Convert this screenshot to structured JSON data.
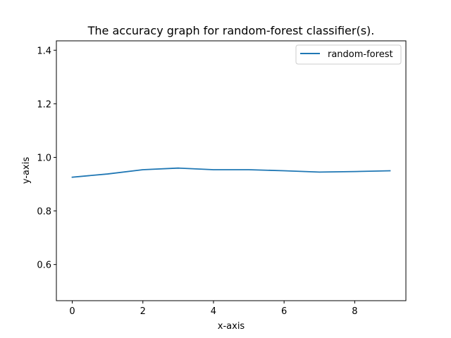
{
  "chart_data": {
    "type": "line",
    "title": "The accuracy graph for random-forest classifier(s).",
    "xlabel": "x-axis",
    "ylabel": "y-axis",
    "xlim": [
      -0.45,
      9.45
    ],
    "ylim": [
      0.465,
      1.435
    ],
    "xticks": [
      0,
      2,
      4,
      6,
      8
    ],
    "xtick_labels": [
      "0",
      "2",
      "4",
      "6",
      "8"
    ],
    "yticks": [
      0.6,
      0.8,
      1.0,
      1.2,
      1.4
    ],
    "ytick_labels": [
      "0.6",
      "0.8",
      "1.0",
      "1.2",
      "1.4"
    ],
    "grid": false,
    "legend_position": "top-right",
    "series": [
      {
        "name": "random-forest",
        "color": "#1f77b4",
        "x": [
          0,
          1,
          2,
          3,
          4,
          5,
          6,
          7,
          8,
          9
        ],
        "y": [
          0.926,
          0.938,
          0.954,
          0.96,
          0.954,
          0.954,
          0.95,
          0.945,
          0.947,
          0.95
        ]
      }
    ]
  }
}
